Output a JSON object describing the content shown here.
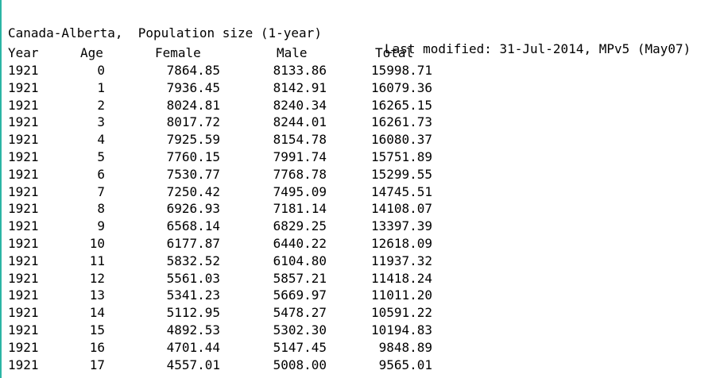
{
  "header": {
    "title": "Canada-Alberta,  Population size (1-year)",
    "last_modified": "Last modified: 31-Jul-2014, MPv5 (May07)"
  },
  "columns": [
    "Year",
    "Age",
    "Female",
    "Male",
    "Total"
  ],
  "rows": [
    [
      "1921",
      "0",
      "7864.85",
      "8133.86",
      "15998.71"
    ],
    [
      "1921",
      "1",
      "7936.45",
      "8142.91",
      "16079.36"
    ],
    [
      "1921",
      "2",
      "8024.81",
      "8240.34",
      "16265.15"
    ],
    [
      "1921",
      "3",
      "8017.72",
      "8244.01",
      "16261.73"
    ],
    [
      "1921",
      "4",
      "7925.59",
      "8154.78",
      "16080.37"
    ],
    [
      "1921",
      "5",
      "7760.15",
      "7991.74",
      "15751.89"
    ],
    [
      "1921",
      "6",
      "7530.77",
      "7768.78",
      "15299.55"
    ],
    [
      "1921",
      "7",
      "7250.42",
      "7495.09",
      "14745.51"
    ],
    [
      "1921",
      "8",
      "6926.93",
      "7181.14",
      "14108.07"
    ],
    [
      "1921",
      "9",
      "6568.14",
      "6829.25",
      "13397.39"
    ],
    [
      "1921",
      "10",
      "6177.87",
      "6440.22",
      "12618.09"
    ],
    [
      "1921",
      "11",
      "5832.52",
      "6104.80",
      "11937.32"
    ],
    [
      "1921",
      "12",
      "5561.03",
      "5857.21",
      "11418.24"
    ],
    [
      "1921",
      "13",
      "5341.23",
      "5669.97",
      "11011.20"
    ],
    [
      "1921",
      "14",
      "5112.95",
      "5478.27",
      "10591.22"
    ],
    [
      "1921",
      "15",
      "4892.53",
      "5302.30",
      "10194.83"
    ],
    [
      "1921",
      "16",
      "4701.44",
      "5147.45",
      "9848.89"
    ],
    [
      "1921",
      "17",
      "4557.01",
      "5008.00",
      "9565.01"
    ]
  ],
  "colors": {
    "left_border": "#2bb5a5",
    "text": "#000000",
    "background": "#ffffff"
  }
}
